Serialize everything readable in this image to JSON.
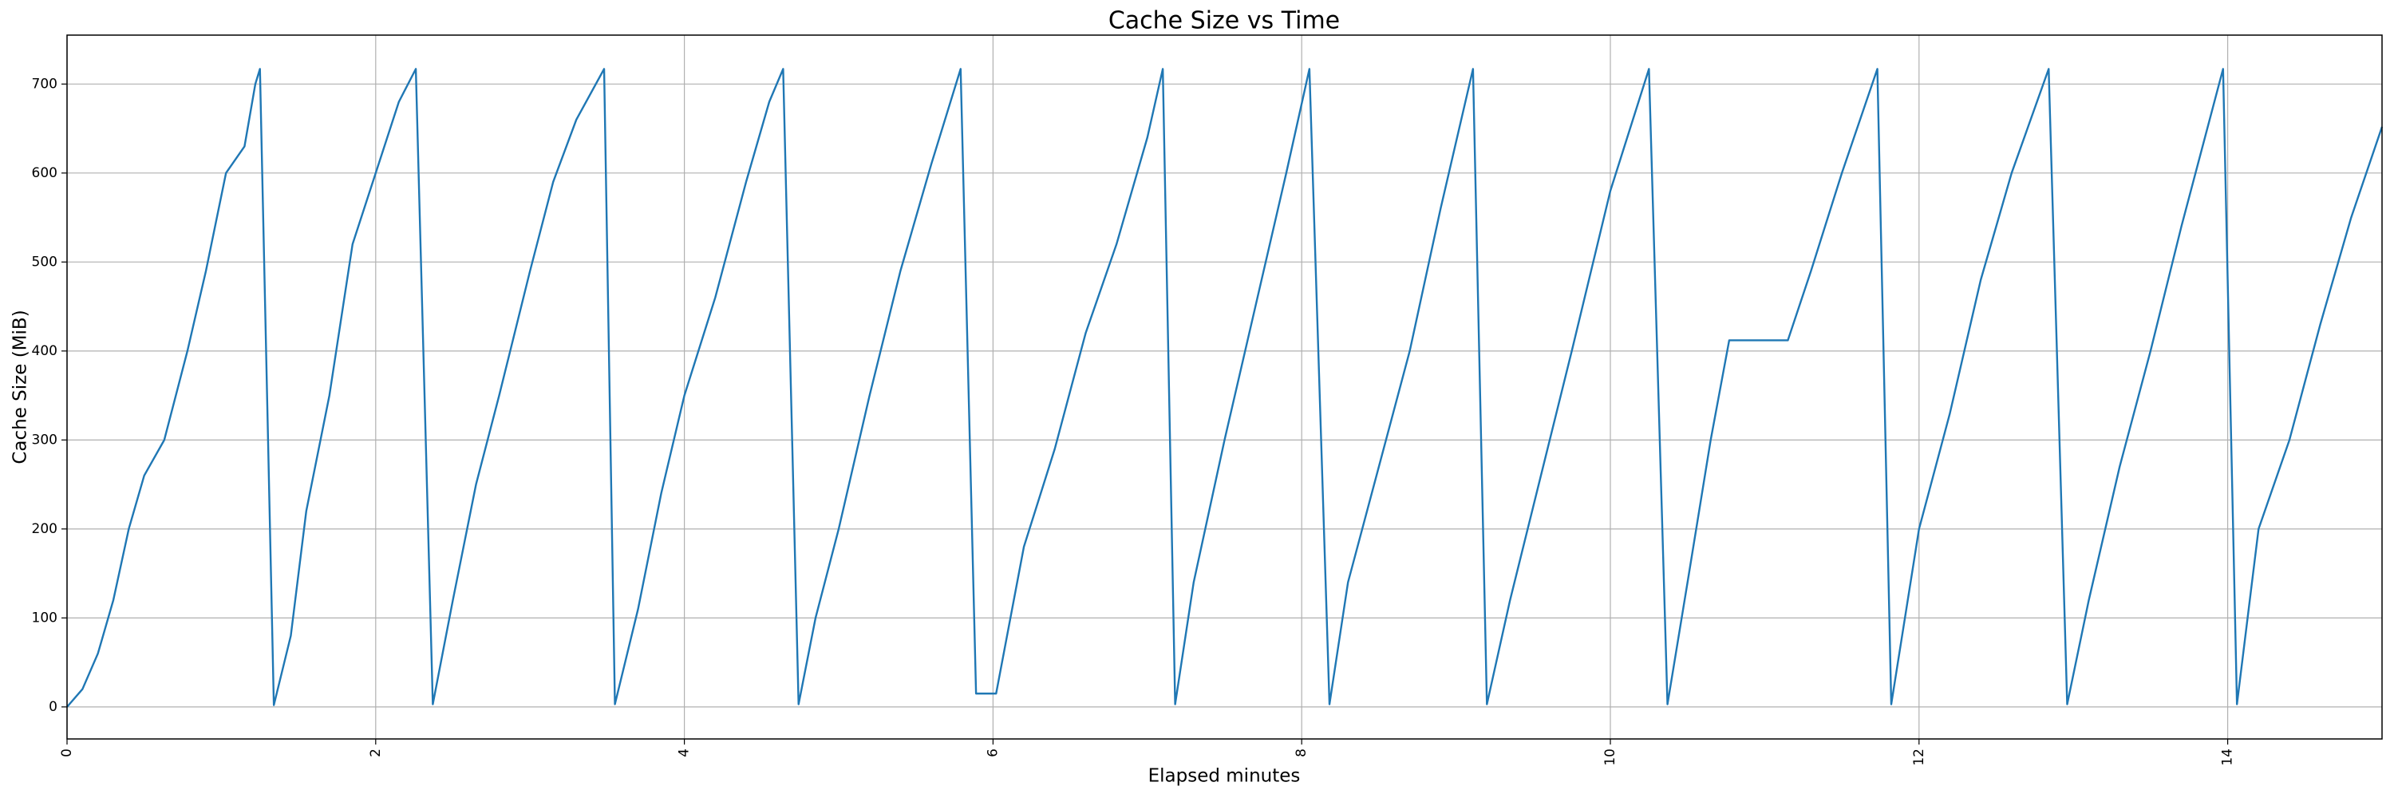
{
  "chart_data": {
    "type": "line",
    "title": "Cache Size vs Time",
    "xlabel": "Elapsed minutes",
    "ylabel": "Cache Size (MiB)",
    "color": "#1f77b4",
    "grid": true,
    "xlim": [
      0,
      15
    ],
    "ylim": [
      -36,
      755
    ],
    "xticks": [
      0,
      2,
      4,
      6,
      8,
      10,
      12,
      14
    ],
    "yticks": [
      0,
      100,
      200,
      300,
      400,
      500,
      600,
      700
    ],
    "x": [
      0,
      0.1,
      0.2,
      0.3,
      0.4,
      0.5,
      0.63,
      0.78,
      0.9,
      1.03,
      1.15,
      1.22,
      1.25,
      1.34,
      1.45,
      1.55,
      1.7,
      1.85,
      2.0,
      2.15,
      2.26,
      2.37,
      2.5,
      2.65,
      2.8,
      3.0,
      3.15,
      3.3,
      3.48,
      3.55,
      3.7,
      3.85,
      4.0,
      4.2,
      4.4,
      4.55,
      4.64,
      4.74,
      4.85,
      5.0,
      5.2,
      5.4,
      5.6,
      5.79,
      5.89,
      6.02,
      6.2,
      6.4,
      6.6,
      6.8,
      7.0,
      7.1,
      7.18,
      7.3,
      7.5,
      7.7,
      7.9,
      8.05,
      8.18,
      8.3,
      8.5,
      8.7,
      8.9,
      9.11,
      9.2,
      9.35,
      9.55,
      9.75,
      10.0,
      10.25,
      10.37,
      10.5,
      10.65,
      10.77,
      11.15,
      11.3,
      11.5,
      11.73,
      11.82,
      12.0,
      12.2,
      12.4,
      12.6,
      12.84,
      12.96,
      13.1,
      13.3,
      13.5,
      13.7,
      13.97,
      14.06,
      14.2,
      14.4,
      14.6,
      14.8,
      15.0
    ],
    "values": [
      0,
      20,
      60,
      120,
      200,
      260,
      300,
      400,
      490,
      600,
      630,
      700,
      717,
      2,
      80,
      220,
      350,
      520,
      600,
      680,
      717,
      3,
      120,
      250,
      350,
      490,
      590,
      660,
      717,
      3,
      110,
      240,
      350,
      460,
      590,
      680,
      717,
      3,
      100,
      200,
      350,
      490,
      610,
      717,
      15,
      15,
      180,
      290,
      420,
      520,
      640,
      717,
      3,
      140,
      300,
      450,
      600,
      717,
      3,
      140,
      270,
      400,
      560,
      717,
      3,
      120,
      260,
      400,
      580,
      717,
      3,
      140,
      300,
      412,
      412,
      490,
      600,
      717,
      3,
      200,
      330,
      480,
      600,
      717,
      3,
      120,
      270,
      400,
      540,
      717,
      3,
      200,
      300,
      430,
      550,
      652
    ]
  }
}
